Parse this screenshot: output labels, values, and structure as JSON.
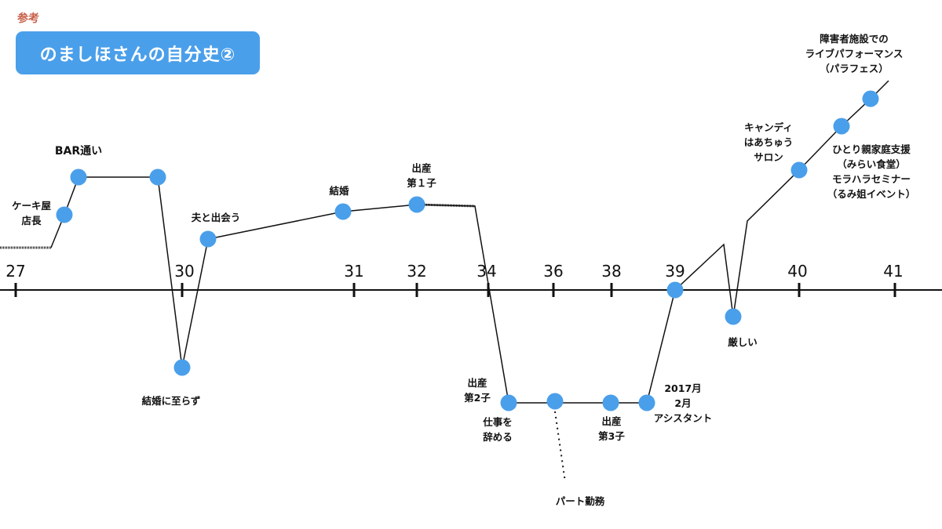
{
  "header": {
    "reference_label": "参考",
    "title": "のましほさんの自分史②"
  },
  "colors": {
    "dot": "#4a9fea",
    "title_bg": "#4a9fea",
    "reference": "#c8604a",
    "line": "#111111"
  },
  "axis": {
    "ticks": [
      "27",
      "30",
      "31",
      "32",
      "34",
      "36",
      "38",
      "39",
      "40",
      "41"
    ]
  },
  "events": {
    "cake": "ケーキ屋\n店長",
    "bar": "BAR通い",
    "no_marriage": "結婚に至らず",
    "meet_husband": "夫と出会う",
    "marriage": "結婚",
    "birth1": "出産\n第１子",
    "birth2": "出産\n第2子",
    "quit": "仕事を\n辞める",
    "parttime": "パート勤務",
    "birth3": "出産\n第3子",
    "assistant": "2017月\n2月\nアシスタント",
    "hard": "厳しい",
    "candy": "キャンディ\nはあちゅう\nサロン",
    "support": "ひとり親家庭支援\n（みらい食堂）\nモラハラセミナー\n（るみ姐イベント）",
    "live": "障害者施設での\nライブパフォーマンス\n（パラフェス）"
  }
}
